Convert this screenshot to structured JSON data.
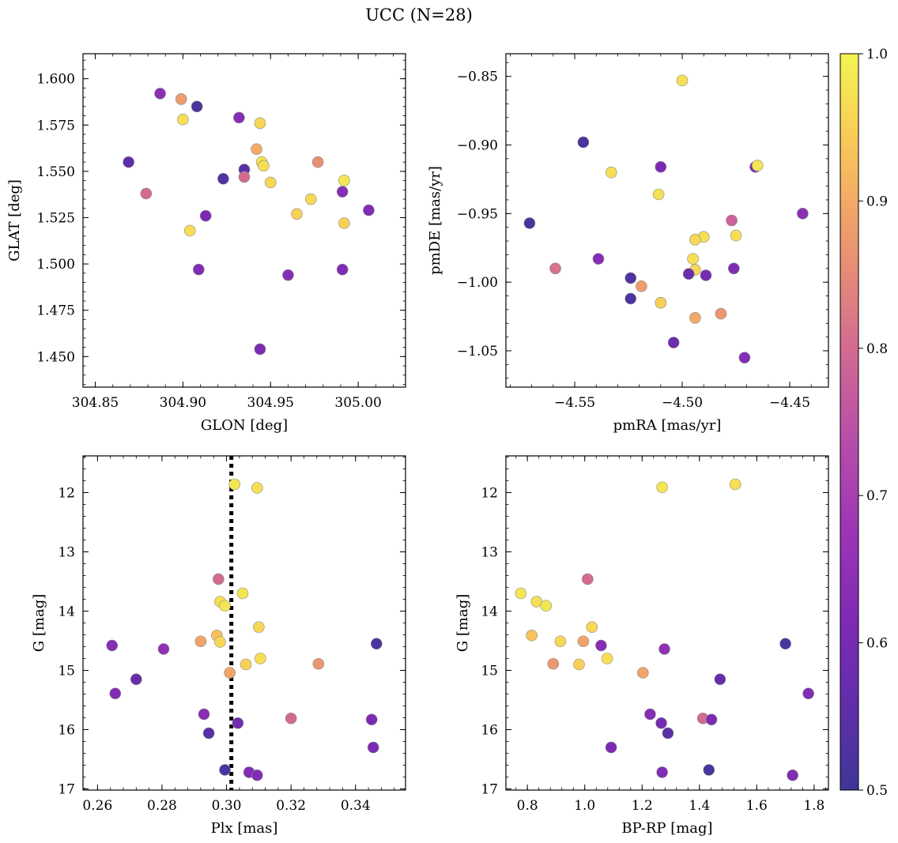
{
  "figure": {
    "title": "UCC (N=28)"
  },
  "colorbar": {
    "range": [
      0.5,
      1.0
    ],
    "ticks": [
      "0.5",
      "0.6",
      "0.7",
      "0.8",
      "0.9",
      "1.0"
    ],
    "colormap": "plasma"
  },
  "chart_data": [
    {
      "type": "scatter",
      "xlabel": "GLON [deg]",
      "ylabel": "GLAT [deg]",
      "xlim": [
        304.843,
        305.027
      ],
      "ylim": [
        1.4335,
        1.6135
      ],
      "xticks": [
        "304.85",
        "304.90",
        "304.95",
        "305.00"
      ],
      "yticks": [
        "1.450",
        "1.475",
        "1.500",
        "1.525",
        "1.550",
        "1.575",
        "1.600"
      ],
      "invert_y": false,
      "points": [
        {
          "x": 304.887,
          "y": 1.592,
          "c": 0.64
        },
        {
          "x": 304.899,
          "y": 1.589,
          "c": 0.88
        },
        {
          "x": 304.908,
          "y": 1.585,
          "c": 0.52
        },
        {
          "x": 304.932,
          "y": 1.579,
          "c": 0.63
        },
        {
          "x": 304.9,
          "y": 1.578,
          "c": 0.97
        },
        {
          "x": 304.944,
          "y": 1.576,
          "c": 0.96
        },
        {
          "x": 304.942,
          "y": 1.562,
          "c": 0.9
        },
        {
          "x": 304.869,
          "y": 1.555,
          "c": 0.55
        },
        {
          "x": 304.977,
          "y": 1.555,
          "c": 0.86
        },
        {
          "x": 304.945,
          "y": 1.555,
          "c": 0.98
        },
        {
          "x": 304.946,
          "y": 1.553,
          "c": 0.97
        },
        {
          "x": 304.935,
          "y": 1.551,
          "c": 0.54
        },
        {
          "x": 304.935,
          "y": 1.547,
          "c": 0.8
        },
        {
          "x": 304.923,
          "y": 1.546,
          "c": 0.53
        },
        {
          "x": 304.992,
          "y": 1.545,
          "c": 0.98
        },
        {
          "x": 304.95,
          "y": 1.544,
          "c": 0.96
        },
        {
          "x": 304.879,
          "y": 1.538,
          "c": 0.8
        },
        {
          "x": 304.991,
          "y": 1.539,
          "c": 0.63
        },
        {
          "x": 304.973,
          "y": 1.535,
          "c": 0.96
        },
        {
          "x": 305.006,
          "y": 1.529,
          "c": 0.62
        },
        {
          "x": 304.965,
          "y": 1.527,
          "c": 0.95
        },
        {
          "x": 304.913,
          "y": 1.526,
          "c": 0.61
        },
        {
          "x": 304.992,
          "y": 1.522,
          "c": 0.95
        },
        {
          "x": 304.904,
          "y": 1.518,
          "c": 0.97
        },
        {
          "x": 304.909,
          "y": 1.497,
          "c": 0.62
        },
        {
          "x": 304.991,
          "y": 1.497,
          "c": 0.62
        },
        {
          "x": 304.96,
          "y": 1.494,
          "c": 0.63
        },
        {
          "x": 304.944,
          "y": 1.454,
          "c": 0.61
        }
      ]
    },
    {
      "type": "scatter",
      "xlabel": "pmRA [mas/yr]",
      "ylabel": "pmDE [mas/yr]",
      "xlim": [
        -4.582,
        -4.432
      ],
      "ylim": [
        -1.0765,
        -0.8335
      ],
      "xticks": [
        "−4.55",
        "−4.50",
        "−4.45"
      ],
      "yticks": [
        "−0.85",
        "−0.90",
        "−0.95",
        "−1.00",
        "−1.05"
      ],
      "invert_y": false,
      "points": [
        {
          "x": -4.5,
          "y": -0.853,
          "c": 0.97
        },
        {
          "x": -4.546,
          "y": -0.898,
          "c": 0.52
        },
        {
          "x": -4.533,
          "y": -0.92,
          "c": 0.97
        },
        {
          "x": -4.51,
          "y": -0.916,
          "c": 0.61
        },
        {
          "x": -4.466,
          "y": -0.916,
          "c": 0.62
        },
        {
          "x": -4.465,
          "y": -0.915,
          "c": 0.98
        },
        {
          "x": -4.511,
          "y": -0.936,
          "c": 0.97
        },
        {
          "x": -4.571,
          "y": -0.957,
          "c": 0.52
        },
        {
          "x": -4.477,
          "y": -0.955,
          "c": 0.78
        },
        {
          "x": -4.444,
          "y": -0.95,
          "c": 0.64
        },
        {
          "x": -4.475,
          "y": -0.966,
          "c": 0.97
        },
        {
          "x": -4.49,
          "y": -0.967,
          "c": 0.97
        },
        {
          "x": -4.494,
          "y": -0.969,
          "c": 0.96
        },
        {
          "x": -4.559,
          "y": -0.99,
          "c": 0.81
        },
        {
          "x": -4.539,
          "y": -0.983,
          "c": 0.63
        },
        {
          "x": -4.495,
          "y": -0.983,
          "c": 0.97
        },
        {
          "x": -4.494,
          "y": -0.991,
          "c": 0.96
        },
        {
          "x": -4.476,
          "y": -0.99,
          "c": 0.62
        },
        {
          "x": -4.497,
          "y": -0.994,
          "c": 0.58
        },
        {
          "x": -4.489,
          "y": -0.995,
          "c": 0.6
        },
        {
          "x": -4.524,
          "y": -0.997,
          "c": 0.53
        },
        {
          "x": -4.519,
          "y": -1.003,
          "c": 0.88
        },
        {
          "x": -4.524,
          "y": -1.012,
          "c": 0.52
        },
        {
          "x": -4.51,
          "y": -1.015,
          "c": 0.95
        },
        {
          "x": -4.482,
          "y": -1.023,
          "c": 0.87
        },
        {
          "x": -4.494,
          "y": -1.026,
          "c": 0.9
        },
        {
          "x": -4.504,
          "y": -1.044,
          "c": 0.58
        },
        {
          "x": -4.471,
          "y": -1.055,
          "c": 0.62
        }
      ]
    },
    {
      "type": "scatter",
      "xlabel": "Plx [mas]",
      "ylabel": "G [mag]",
      "xlim": [
        0.2555,
        0.3555
      ],
      "ylim": [
        11.38,
        17.02
      ],
      "xticks": [
        "0.26",
        "0.28",
        "0.30",
        "0.32",
        "0.34"
      ],
      "yticks": [
        "12",
        "13",
        "14",
        "15",
        "16",
        "17"
      ],
      "invert_y": true,
      "vline": 0.3015,
      "points": [
        {
          "x": 0.3025,
          "y": 11.86,
          "c": 0.98
        },
        {
          "x": 0.3095,
          "y": 11.92,
          "c": 0.97
        },
        {
          "x": 0.2975,
          "y": 13.46,
          "c": 0.8
        },
        {
          "x": 0.305,
          "y": 13.7,
          "c": 0.98
        },
        {
          "x": 0.298,
          "y": 13.84,
          "c": 0.97
        },
        {
          "x": 0.2995,
          "y": 13.91,
          "c": 0.98
        },
        {
          "x": 0.31,
          "y": 14.27,
          "c": 0.96
        },
        {
          "x": 0.297,
          "y": 14.41,
          "c": 0.93
        },
        {
          "x": 0.292,
          "y": 14.51,
          "c": 0.89
        },
        {
          "x": 0.298,
          "y": 14.52,
          "c": 0.96
        },
        {
          "x": 0.2645,
          "y": 14.58,
          "c": 0.63
        },
        {
          "x": 0.3465,
          "y": 14.55,
          "c": 0.52
        },
        {
          "x": 0.2805,
          "y": 14.64,
          "c": 0.65
        },
        {
          "x": 0.3105,
          "y": 14.8,
          "c": 0.97
        },
        {
          "x": 0.306,
          "y": 14.9,
          "c": 0.95
        },
        {
          "x": 0.3285,
          "y": 14.89,
          "c": 0.87
        },
        {
          "x": 0.301,
          "y": 15.04,
          "c": 0.89
        },
        {
          "x": 0.272,
          "y": 15.15,
          "c": 0.57
        },
        {
          "x": 0.2655,
          "y": 15.39,
          "c": 0.62
        },
        {
          "x": 0.293,
          "y": 15.74,
          "c": 0.63
        },
        {
          "x": 0.32,
          "y": 15.81,
          "c": 0.8
        },
        {
          "x": 0.345,
          "y": 15.83,
          "c": 0.61
        },
        {
          "x": 0.3035,
          "y": 15.89,
          "c": 0.59
        },
        {
          "x": 0.2945,
          "y": 16.06,
          "c": 0.54
        },
        {
          "x": 0.3455,
          "y": 16.3,
          "c": 0.61
        },
        {
          "x": 0.2995,
          "y": 16.68,
          "c": 0.52
        },
        {
          "x": 0.307,
          "y": 16.72,
          "c": 0.62
        },
        {
          "x": 0.3095,
          "y": 16.77,
          "c": 0.62
        }
      ]
    },
    {
      "type": "scatter",
      "xlabel": "BP-RP [mag]",
      "ylabel": "G [mag]",
      "xlim": [
        0.725,
        1.85
      ],
      "ylim": [
        11.38,
        17.02
      ],
      "xticks": [
        "0.8",
        "1.0",
        "1.2",
        "1.4",
        "1.6",
        "1.8"
      ],
      "yticks": [
        "12",
        "13",
        "14",
        "15",
        "16",
        "17"
      ],
      "invert_y": true,
      "points": [
        {
          "x": 1.27,
          "y": 11.91,
          "c": 0.98
        },
        {
          "x": 1.525,
          "y": 11.86,
          "c": 0.97
        },
        {
          "x": 1.01,
          "y": 13.46,
          "c": 0.8
        },
        {
          "x": 0.777,
          "y": 13.7,
          "c": 0.98
        },
        {
          "x": 0.832,
          "y": 13.84,
          "c": 0.97
        },
        {
          "x": 0.865,
          "y": 13.91,
          "c": 0.98
        },
        {
          "x": 1.025,
          "y": 14.27,
          "c": 0.96
        },
        {
          "x": 0.815,
          "y": 14.41,
          "c": 0.93
        },
        {
          "x": 0.915,
          "y": 14.51,
          "c": 0.96
        },
        {
          "x": 0.995,
          "y": 14.51,
          "c": 0.89
        },
        {
          "x": 1.7,
          "y": 14.55,
          "c": 0.52
        },
        {
          "x": 1.057,
          "y": 14.58,
          "c": 0.63
        },
        {
          "x": 1.278,
          "y": 14.64,
          "c": 0.65
        },
        {
          "x": 1.078,
          "y": 14.8,
          "c": 0.97
        },
        {
          "x": 0.89,
          "y": 14.89,
          "c": 0.87
        },
        {
          "x": 0.98,
          "y": 14.9,
          "c": 0.95
        },
        {
          "x": 1.203,
          "y": 15.04,
          "c": 0.89
        },
        {
          "x": 1.472,
          "y": 15.15,
          "c": 0.57
        },
        {
          "x": 1.78,
          "y": 15.39,
          "c": 0.62
        },
        {
          "x": 1.228,
          "y": 15.74,
          "c": 0.63
        },
        {
          "x": 1.412,
          "y": 15.81,
          "c": 0.8
        },
        {
          "x": 1.442,
          "y": 15.83,
          "c": 0.61
        },
        {
          "x": 1.267,
          "y": 15.89,
          "c": 0.59
        },
        {
          "x": 1.29,
          "y": 16.06,
          "c": 0.54
        },
        {
          "x": 1.092,
          "y": 16.3,
          "c": 0.61
        },
        {
          "x": 1.433,
          "y": 16.68,
          "c": 0.52
        },
        {
          "x": 1.27,
          "y": 16.72,
          "c": 0.62
        },
        {
          "x": 1.725,
          "y": 16.77,
          "c": 0.62
        }
      ]
    }
  ]
}
